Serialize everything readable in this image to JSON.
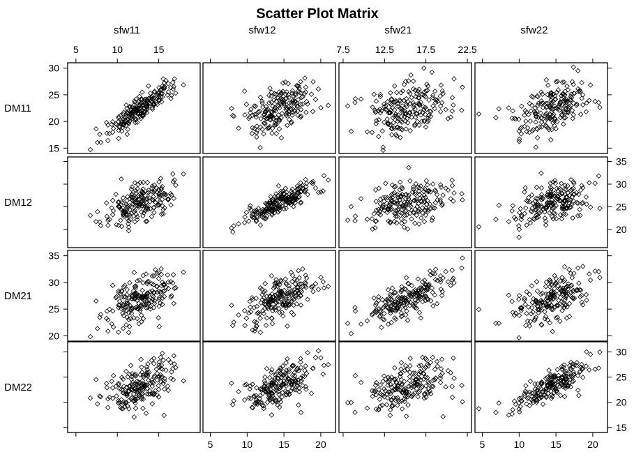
{
  "chart_data": {
    "type": "scatter",
    "title": "Scatter Plot Matrix",
    "columns": [
      {
        "label": "sfw11",
        "range": [
          4,
          20
        ],
        "ticks": [
          "5",
          "10",
          "15"
        ],
        "tick_values": [
          5,
          10,
          15
        ]
      },
      {
        "label": "sfw12",
        "range": [
          4,
          22
        ],
        "ticks": [
          "5",
          "10",
          "15",
          "20"
        ],
        "tick_values": [
          5,
          10,
          15,
          20
        ]
      },
      {
        "label": "sfw21",
        "range": [
          7,
          23
        ],
        "ticks": [
          "7.5",
          "12.5",
          "17.5",
          "22.5"
        ],
        "tick_values": [
          7.5,
          12.5,
          17.5,
          22.5
        ]
      },
      {
        "label": "sfw22",
        "range": [
          4,
          22
        ],
        "ticks": [
          "5",
          "10",
          "15",
          "20"
        ],
        "tick_values": [
          5,
          10,
          15,
          20
        ]
      }
    ],
    "rows": [
      {
        "label": "DM11",
        "range": [
          14,
          31
        ],
        "ticks": [
          "15",
          "20",
          "25",
          "30"
        ],
        "tick_values": [
          15,
          20,
          25,
          30
        ]
      },
      {
        "label": "DM12",
        "range": [
          16,
          36
        ],
        "ticks": [
          "20",
          "25",
          "30",
          "35"
        ],
        "tick_values": [
          20,
          25,
          30,
          35
        ]
      },
      {
        "label": "DM21",
        "range": [
          19,
          36
        ],
        "ticks": [
          "20",
          "25",
          "30",
          "35"
        ],
        "tick_values": [
          20,
          25,
          30,
          35
        ]
      },
      {
        "label": "DM22",
        "range": [
          14,
          32
        ],
        "ticks": [
          "15",
          "20",
          "25",
          "30"
        ],
        "tick_values": [
          15,
          20,
          25,
          30
        ]
      }
    ],
    "sample_points": {
      "note_rows_cols": "points[row][col] as [x, y] in data units",
      "n": 200
    },
    "marker": "diamond-open",
    "grid": false
  }
}
